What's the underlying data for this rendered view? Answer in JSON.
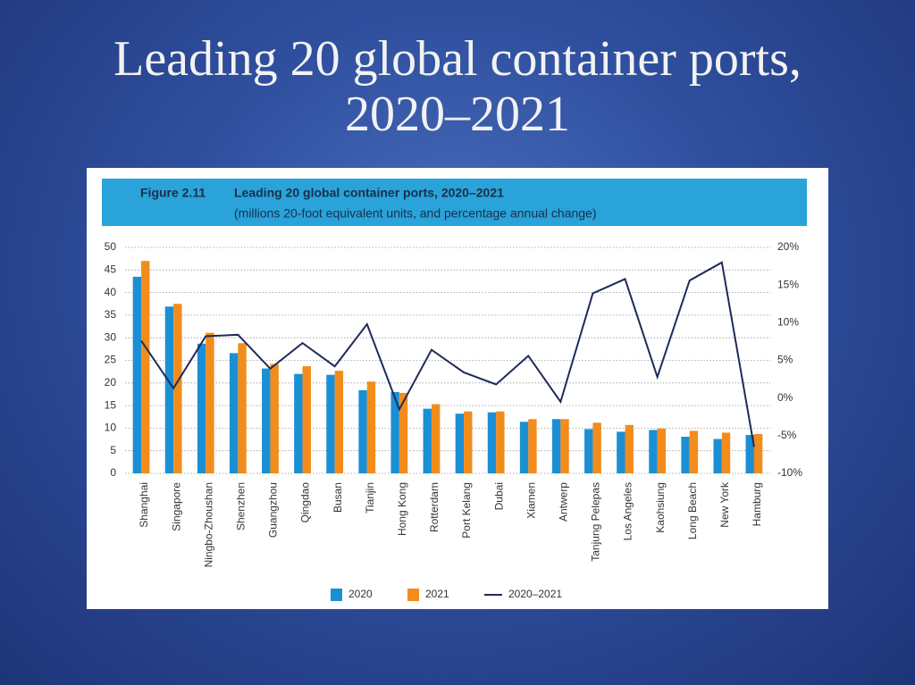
{
  "slide_title": "Leading 20 global container ports, 2020–2021",
  "chart_data": {
    "type": "bar",
    "figure_label": "Figure 2.11",
    "title": "Leading 20 global container ports, 2020–2021",
    "subtitle": "(millions 20-foot equivalent units, and percentage annual change)",
    "categories": [
      "Shanghai",
      "Singapore",
      "Ningbo-Zhoushan",
      "Shenzhen",
      "Guangzhou",
      "Qingdao",
      "Busan",
      "Tianjin",
      "Hong Kong",
      "Rotterdam",
      "Port Kelang",
      "Dubai",
      "Xiamen",
      "Antwerp",
      "Tanjung Pelepas",
      "Los Angeles",
      "Kaohsiung",
      "Long Beach",
      "New York",
      "Hamburg"
    ],
    "series": [
      {
        "name": "2020",
        "color": "#1b8fd4",
        "values": [
          43.5,
          36.9,
          28.7,
          26.6,
          23.2,
          22.0,
          21.8,
          18.4,
          18.0,
          14.3,
          13.2,
          13.5,
          11.4,
          12.0,
          9.8,
          9.2,
          9.6,
          8.1,
          7.6,
          8.5
        ]
      },
      {
        "name": "2021",
        "color": "#f28c1c",
        "values": [
          47.0,
          37.5,
          31.1,
          28.8,
          24.2,
          23.7,
          22.7,
          20.3,
          17.8,
          15.3,
          13.7,
          13.7,
          12.0,
          12.0,
          11.2,
          10.7,
          9.9,
          9.4,
          9.0,
          8.7
        ]
      },
      {
        "name": "2020–2021",
        "color": "#1f2a5a",
        "type": "line",
        "axis": "y2",
        "values": [
          7.6,
          1.3,
          8.2,
          8.4,
          3.9,
          7.3,
          4.2,
          9.8,
          -1.5,
          6.4,
          3.4,
          1.8,
          5.6,
          -0.5,
          13.9,
          15.8,
          2.8,
          15.6,
          18.0,
          -6.5
        ]
      }
    ],
    "ylim": [
      0,
      50
    ],
    "yticks": [
      0,
      5,
      10,
      15,
      20,
      25,
      30,
      35,
      40,
      45,
      50
    ],
    "y2lim": [
      -10,
      20
    ],
    "y2ticks": [
      {
        "value": -10,
        "label": "-10%"
      },
      {
        "value": -5,
        "label": "-5%"
      },
      {
        "value": 0,
        "label": "0%"
      },
      {
        "value": 5,
        "label": "5%"
      },
      {
        "value": 10,
        "label": "10%"
      },
      {
        "value": 15,
        "label": "15%"
      },
      {
        "value": 20,
        "label": "20%"
      }
    ],
    "grid": true,
    "legend": "bottom",
    "header_color": "#29a3d9"
  }
}
